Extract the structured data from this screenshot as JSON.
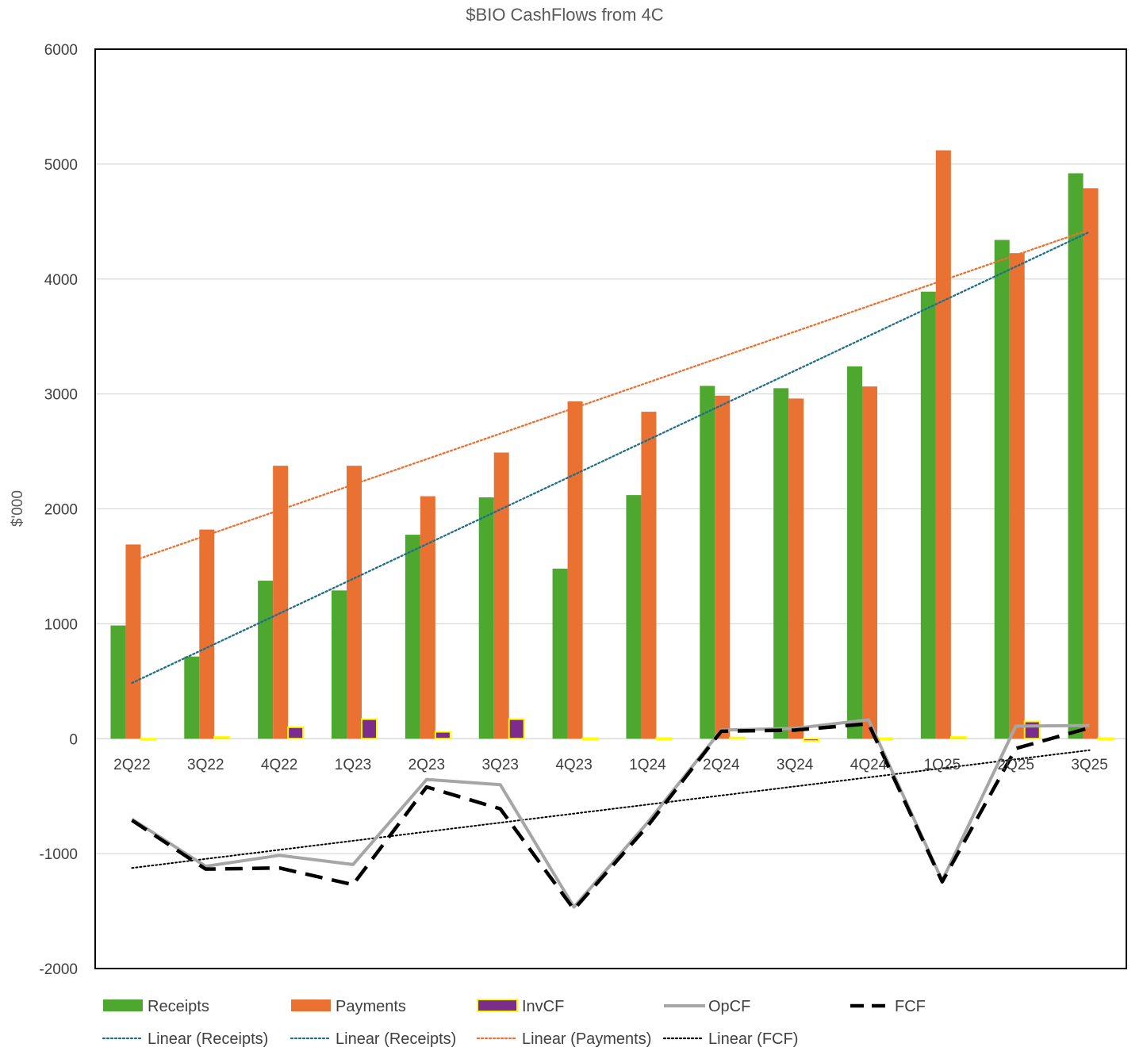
{
  "chart_data": {
    "type": "bar",
    "title": "$BIO CashFlows from 4C",
    "xlabel": "",
    "ylabel": "$'000",
    "ylim": [
      -2000,
      6000
    ],
    "yticks": [
      -2000,
      -1000,
      0,
      1000,
      2000,
      3000,
      4000,
      5000,
      6000
    ],
    "ytick_labels": [
      "-2000",
      "-1000",
      "0",
      "1000",
      "2000",
      "3000",
      "4000",
      "5000",
      "6000"
    ],
    "categories": [
      "2Q22",
      "3Q22",
      "4Q22",
      "1Q23",
      "2Q23",
      "3Q23",
      "4Q23",
      "1Q24",
      "2Q24",
      "3Q24",
      "4Q24",
      "1Q25",
      "2Q25",
      "3Q25"
    ],
    "grid": true,
    "legend_position": "bottom",
    "series": [
      {
        "name": "Receipts",
        "kind": "bar",
        "color": "#4ea72e",
        "values": [
          985,
          715,
          1375,
          1290,
          1775,
          2100,
          1480,
          2120,
          3070,
          3050,
          3240,
          3890,
          4340,
          4920
        ]
      },
      {
        "name": "Payments",
        "kind": "bar",
        "color": "#e97132",
        "values": [
          1690,
          1820,
          2375,
          2375,
          2110,
          2490,
          2935,
          2845,
          2985,
          2960,
          3065,
          5120,
          4225,
          4790
        ]
      },
      {
        "name": "InvCF",
        "kind": "bar",
        "color": "#7b2c8c",
        "border": "#ffff00",
        "values": [
          -10,
          15,
          100,
          170,
          60,
          170,
          5,
          5,
          10,
          -20,
          5,
          15,
          150,
          5
        ]
      },
      {
        "name": "OpCF",
        "kind": "line",
        "color": "#a6a6a6",
        "values": [
          -700,
          -1110,
          -1015,
          -1095,
          -355,
          -400,
          -1465,
          -730,
          75,
          90,
          165,
          -1235,
          110,
          115
        ]
      },
      {
        "name": "FCF",
        "kind": "dashed-line",
        "color": "#000000",
        "values": [
          -710,
          -1135,
          -1125,
          -1270,
          -420,
          -610,
          -1485,
          -760,
          65,
          75,
          130,
          -1245,
          -85,
          95
        ]
      }
    ],
    "trendlines": [
      {
        "name": "Linear (Receipts)",
        "color": "#1f6f8b",
        "start": 485,
        "end": 4410
      },
      {
        "name": "Linear (Receipts)",
        "color": "#1f6f8b",
        "start": 485,
        "end": 4410
      },
      {
        "name": "Linear (Payments)",
        "color": "#e97132",
        "start": 1545,
        "end": 4430
      },
      {
        "name": "Linear (FCF)",
        "color": "#000000",
        "start": -1125,
        "end": -100
      }
    ],
    "legend": {
      "row1": [
        "Receipts",
        "Payments",
        "InvCF",
        "OpCF",
        "FCF"
      ],
      "row2": [
        "Linear (Receipts)",
        "Linear (Receipts)",
        "Linear (Payments)",
        "Linear (FCF)"
      ]
    }
  }
}
